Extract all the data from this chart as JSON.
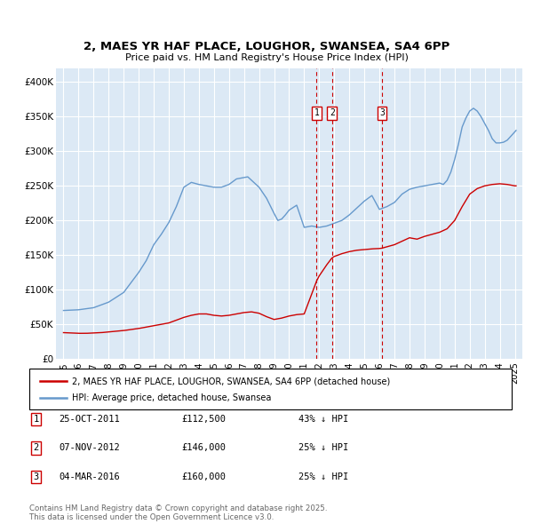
{
  "title": "2, MAES YR HAF PLACE, LOUGHOR, SWANSEA, SA4 6PP",
  "subtitle": "Price paid vs. HM Land Registry's House Price Index (HPI)",
  "bg_color": "#dce9f5",
  "red_label": "2, MAES YR HAF PLACE, LOUGHOR, SWANSEA, SA4 6PP (detached house)",
  "blue_label": "HPI: Average price, detached house, Swansea",
  "footer": "Contains HM Land Registry data © Crown copyright and database right 2025.\nThis data is licensed under the Open Government Licence v3.0.",
  "transactions": [
    {
      "num": 1,
      "date": "25-OCT-2011",
      "price": 112500,
      "year": 2011.82,
      "pct": "43% ↓ HPI"
    },
    {
      "num": 2,
      "date": "07-NOV-2012",
      "price": 146000,
      "year": 2012.85,
      "pct": "25% ↓ HPI"
    },
    {
      "num": 3,
      "date": "04-MAR-2016",
      "price": 160000,
      "year": 2016.17,
      "pct": "25% ↓ HPI"
    }
  ],
  "ylim": [
    0,
    420000
  ],
  "xlim_start": 1994.5,
  "xlim_end": 2025.5,
  "yticks": [
    0,
    50000,
    100000,
    150000,
    200000,
    250000,
    300000,
    350000,
    400000
  ],
  "ytick_labels": [
    "£0",
    "£50K",
    "£100K",
    "£150K",
    "£200K",
    "£250K",
    "£300K",
    "£350K",
    "£400K"
  ]
}
